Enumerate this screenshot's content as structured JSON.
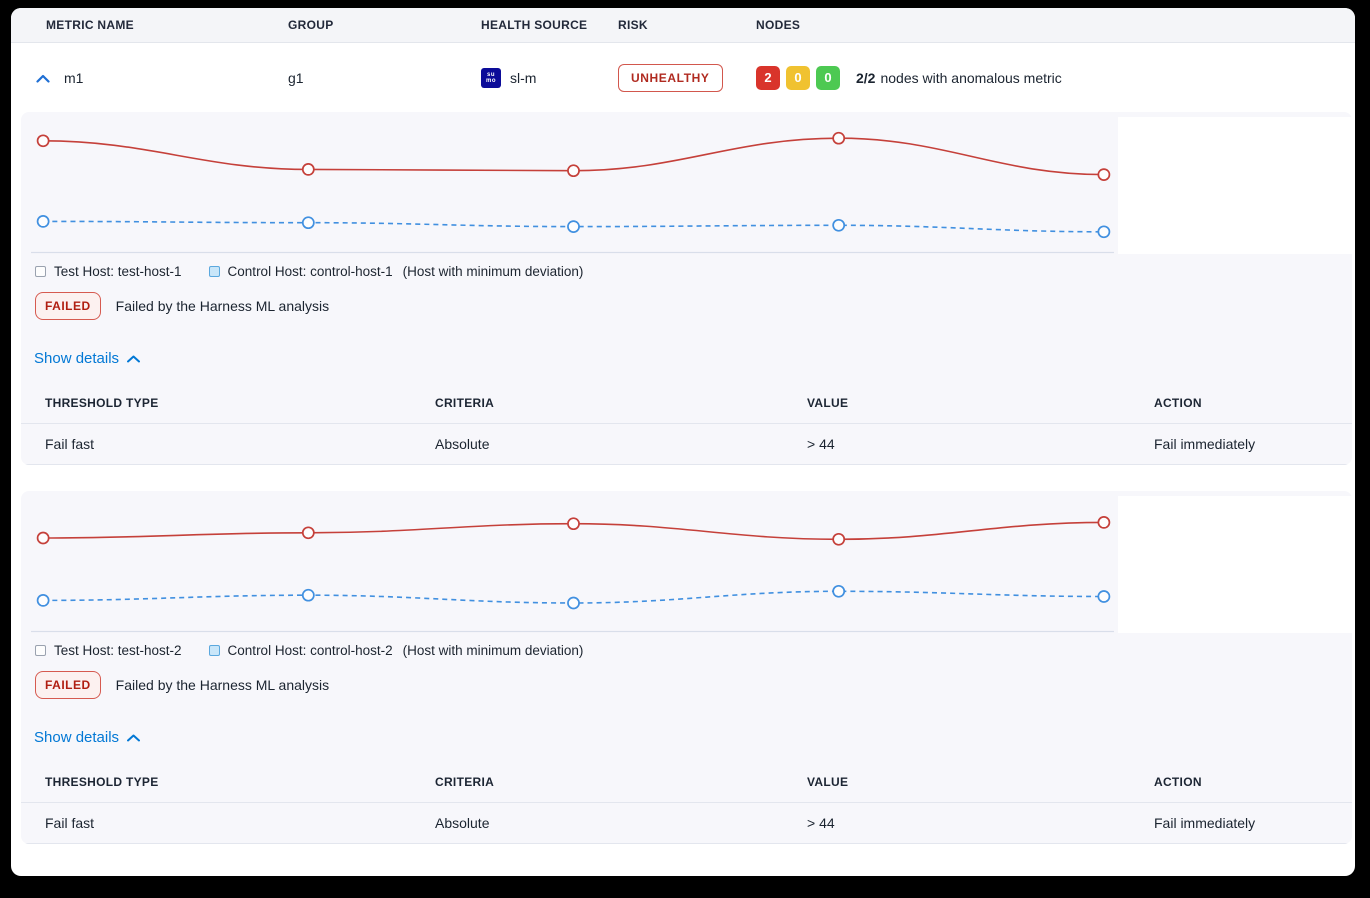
{
  "columns": {
    "metric_name": "METRIC NAME",
    "group": "GROUP",
    "health_source": "HEALTH SOURCE",
    "risk": "RISK",
    "nodes": "NODES"
  },
  "metric_row": {
    "metric_name": "m1",
    "group": "g1",
    "health_source": {
      "icon": "sumo-logic-icon",
      "icon_text_top": "su",
      "icon_text_bottom": "mo",
      "label": "sl-m"
    },
    "risk_badge": "UNHEALTHY",
    "nodes": {
      "counts": [
        {
          "value": "2",
          "color": "#d9342b"
        },
        {
          "value": "0",
          "color": "#f0c230"
        },
        {
          "value": "0",
          "color": "#4dc952"
        }
      ],
      "summary_bold": "2/2",
      "summary_text": "nodes with anomalous metric"
    }
  },
  "sections": [
    {
      "legend": {
        "test_label": "Test Host: test-host-1",
        "control_label": "Control Host: control-host-1",
        "note": "(Host with minimum deviation)"
      },
      "verdict": {
        "badge": "FAILED",
        "text": "Failed by the Harness ML analysis"
      },
      "show_details_label": "Show details",
      "table": {
        "headers": [
          "THRESHOLD TYPE",
          "CRITERIA",
          "VALUE",
          "ACTION"
        ],
        "rows": [
          [
            "Fail fast",
            "Absolute",
            "> 44",
            "Fail immediately"
          ]
        ]
      }
    },
    {
      "legend": {
        "test_label": "Test Host: test-host-2",
        "control_label": "Control Host: control-host-2",
        "note": "(Host with minimum deviation)"
      },
      "verdict": {
        "badge": "FAILED",
        "text": "Failed by the Harness ML analysis"
      },
      "show_details_label": "Show details",
      "table": {
        "headers": [
          "THRESHOLD TYPE",
          "CRITERIA",
          "VALUE",
          "ACTION"
        ],
        "rows": [
          [
            "Fail fast",
            "Absolute",
            "> 44",
            "Fail immediately"
          ]
        ]
      }
    }
  ],
  "chart_data": [
    {
      "type": "line",
      "x": [
        1,
        2,
        3,
        4,
        5
      ],
      "series": [
        {
          "name": "Test Host: test-host-1",
          "values": [
            84,
            62,
            61,
            86,
            58
          ],
          "color": "#c5403a",
          "dash": false
        },
        {
          "name": "Control Host: control-host-1",
          "values": [
            22,
            21,
            18,
            19,
            14
          ],
          "color": "#4190e0",
          "dash": true
        }
      ],
      "title": "",
      "xlabel": "",
      "ylabel": "",
      "ylim": [
        0,
        100
      ],
      "axes_visible": false,
      "grid": false,
      "legend_position": "below",
      "smooth": true,
      "markers": "open-circle"
    },
    {
      "type": "line",
      "x": [
        1,
        2,
        3,
        4,
        5
      ],
      "series": [
        {
          "name": "Test Host: test-host-2",
          "values": [
            70,
            74,
            81,
            69,
            82
          ],
          "color": "#c5403a",
          "dash": false
        },
        {
          "name": "Control Host: control-host-2",
          "values": [
            22,
            26,
            20,
            29,
            25
          ],
          "color": "#4190e0",
          "dash": true
        }
      ],
      "title": "",
      "xlabel": "",
      "ylabel": "",
      "ylim": [
        0,
        100
      ],
      "axes_visible": false,
      "grid": false,
      "legend_position": "below",
      "smooth": true,
      "markers": "open-circle"
    }
  ],
  "colors": {
    "accent_blue": "#0278d5",
    "risk_red": "#b02a20",
    "failed_red": "#b01f12",
    "node_red": "#d9342b",
    "node_yellow": "#f0c230",
    "node_green": "#4dc952",
    "test_line": "#c5403a",
    "control_line": "#4190e0",
    "card_bg": "#f7f7fb",
    "header_bg": "#f4f5f8"
  }
}
